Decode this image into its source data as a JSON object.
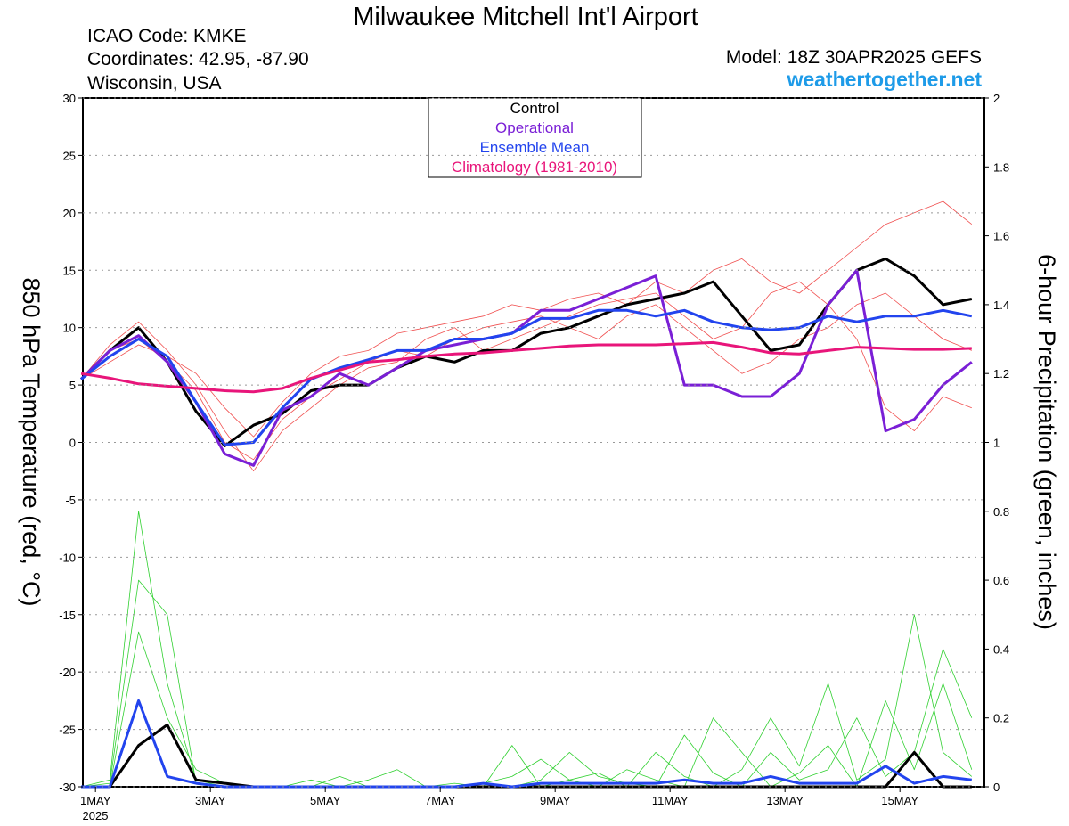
{
  "chart_data": {
    "type": "line",
    "title": "Milwaukee Mitchell Int'l Airport",
    "header_left": [
      "ICAO Code: KMKE",
      "Coordinates: 42.95, -87.90",
      "Wisconsin, USA"
    ],
    "model": "Model: 18Z 30APR2025 GEFS",
    "site": "weathertogether.net",
    "y_label": "850 hPa Temperature (red, °C)",
    "y2_label": "6-hour Precipitation (green, inches)",
    "x_year": "2025",
    "x": [
      -0.25,
      0.25,
      0.75,
      1.25,
      1.75,
      2.25,
      2.75,
      3.25,
      3.75,
      4.25,
      4.75,
      5.25,
      5.75,
      6.25,
      6.75,
      7.25,
      7.75,
      8.25,
      8.75,
      9.25,
      9.75,
      10.25,
      10.75,
      11.25,
      11.75,
      12.25,
      12.75,
      13.25,
      13.75,
      14.25,
      14.75,
      15.25
    ],
    "xlim": [
      -0.22,
      15.47
    ],
    "xticks": [
      {
        "value": 0,
        "label": "1MAY"
      },
      {
        "value": 2,
        "label": "3MAY"
      },
      {
        "value": 4,
        "label": "5MAY"
      },
      {
        "value": 6,
        "label": "7MAY"
      },
      {
        "value": 8,
        "label": "9MAY"
      },
      {
        "value": 10,
        "label": "11MAY"
      },
      {
        "value": 12,
        "label": "13MAY"
      },
      {
        "value": 14,
        "label": "15MAY"
      }
    ],
    "ylim": [
      -30,
      30
    ],
    "yticks": [
      -30,
      -25,
      -20,
      -15,
      -10,
      -5,
      0,
      5,
      10,
      15,
      20,
      25,
      30
    ],
    "y2lim": [
      0,
      2
    ],
    "y2ticks": [
      0,
      0.2,
      0.4,
      0.6,
      0.8,
      1,
      1.2,
      1.4,
      1.6,
      1.8,
      2
    ],
    "grid": true,
    "members": [
      {
        "color": "#f05050",
        "values": [
          5.5,
          8.5,
          10.5,
          8,
          5,
          1,
          -2.5,
          1,
          3,
          5,
          6.5,
          7,
          9,
          10,
          8,
          9,
          10,
          11,
          12,
          12.5,
          13,
          11,
          9,
          10,
          13,
          14,
          12,
          9,
          3,
          1,
          4,
          3
        ]
      },
      {
        "color": "#f05050",
        "values": [
          5.5,
          7,
          8.5,
          7.5,
          6,
          3,
          0.5,
          3.5,
          6,
          7.5,
          8,
          9.5,
          10,
          10.5,
          11,
          12,
          11.5,
          12.5,
          13,
          12,
          14,
          13,
          15,
          16,
          14,
          13,
          15,
          17,
          19,
          20,
          21,
          19
        ]
      },
      {
        "color": "#f05050",
        "values": [
          5.5,
          8,
          9,
          7,
          4.5,
          0,
          -1.5,
          2,
          4,
          5.5,
          7,
          8,
          7.5,
          9,
          10,
          10.5,
          11,
          10,
          9,
          11,
          12,
          10,
          8,
          6,
          7,
          9,
          10,
          12,
          13,
          11,
          9,
          8
        ]
      }
    ],
    "precip_members": [
      {
        "color": "#30d030",
        "values": [
          0,
          0.02,
          0.8,
          0.3,
          0.02,
          0,
          0,
          0,
          0,
          0,
          0.02,
          0.05,
          0,
          0,
          0.01,
          0.03,
          0.08,
          0.02,
          0.04,
          0,
          0.1,
          0.03,
          0,
          0.05,
          0.2,
          0.06,
          0.3,
          0.02,
          0.08,
          0.5,
          0.1,
          0.03
        ]
      },
      {
        "color": "#30d030",
        "values": [
          0,
          0.01,
          0.6,
          0.5,
          0.01,
          0,
          0,
          0,
          0.02,
          0,
          0,
          0,
          0,
          0.01,
          0,
          0,
          0.02,
          0.1,
          0.03,
          0.01,
          0,
          0.15,
          0.04,
          0,
          0.1,
          0.02,
          0.05,
          0.2,
          0.03,
          0.1,
          0.4,
          0.2
        ]
      },
      {
        "color": "#30d030",
        "values": [
          0,
          0,
          0.45,
          0.2,
          0.05,
          0.01,
          0,
          0,
          0,
          0.03,
          0,
          0,
          0,
          0,
          0,
          0.12,
          0,
          0.02,
          0,
          0.05,
          0.02,
          0,
          0.2,
          0.1,
          0,
          0.04,
          0.12,
          0,
          0.25,
          0.05,
          0.3,
          0.05
        ]
      }
    ],
    "series": [
      {
        "name": "Control",
        "color": "#000000",
        "values": [
          5.5,
          8,
          10,
          7,
          2.7,
          -0.3,
          1.5,
          2.5,
          4.5,
          5,
          5,
          6.5,
          7.5,
          7,
          8,
          8,
          9.5,
          10,
          11,
          12,
          12.5,
          13,
          14,
          11,
          8,
          8.5,
          12,
          15,
          16,
          14.5,
          12,
          12.5
        ]
      },
      {
        "name": "Operational",
        "color": "#7a1fd6",
        "values": [
          5.5,
          8,
          9.3,
          7,
          3.5,
          -1,
          -2,
          2.8,
          4,
          6,
          5,
          6.5,
          8,
          8.5,
          9,
          9.5,
          11.5,
          11.5,
          12.5,
          13.5,
          14.5,
          5,
          5,
          4,
          4,
          6,
          12,
          15,
          1,
          2,
          5,
          7
        ]
      },
      {
        "name": "Ensemble Mean",
        "color": "#2244ee",
        "values": [
          5.5,
          7.5,
          9,
          7.5,
          3.5,
          -0.2,
          0,
          3,
          5.5,
          6.5,
          7.2,
          8,
          8,
          9,
          9,
          9.5,
          10.8,
          10.8,
          11.5,
          11.5,
          11,
          11.5,
          10.5,
          10,
          9.8,
          10,
          11,
          10.5,
          11,
          11,
          11.5,
          11
        ]
      },
      {
        "name": "Climatology (1981-2010)",
        "color": "#e8157a",
        "values": [
          6,
          5.6,
          5.1,
          4.9,
          4.7,
          4.5,
          4.4,
          4.7,
          5.6,
          6.3,
          7,
          7.2,
          7.5,
          7.7,
          7.8,
          8,
          8.2,
          8.4,
          8.5,
          8.5,
          8.5,
          8.6,
          8.7,
          8.3,
          7.8,
          7.7,
          8,
          8.3,
          8.2,
          8.1,
          8.1,
          8.2
        ]
      }
    ],
    "precip_series": [
      {
        "color": "#000000",
        "axis": "y2",
        "values": [
          0,
          0,
          0.12,
          0.18,
          0.02,
          0.01,
          0,
          0,
          0,
          0,
          0,
          0,
          0,
          0,
          0,
          0,
          0,
          0,
          0,
          0,
          0,
          0,
          0,
          0,
          0,
          0,
          0,
          0,
          0,
          0.1,
          0,
          0
        ]
      },
      {
        "color": "#2244ee",
        "axis": "y2",
        "values": [
          0,
          0,
          0.25,
          0.03,
          0.01,
          0,
          0,
          0,
          0,
          0,
          0,
          0,
          0,
          0,
          0.01,
          0,
          0.01,
          0.01,
          0.01,
          0.01,
          0.01,
          0.02,
          0.01,
          0.01,
          0.03,
          0.01,
          0.01,
          0.01,
          0.06,
          0.01,
          0.03,
          0.02
        ]
      }
    ]
  }
}
